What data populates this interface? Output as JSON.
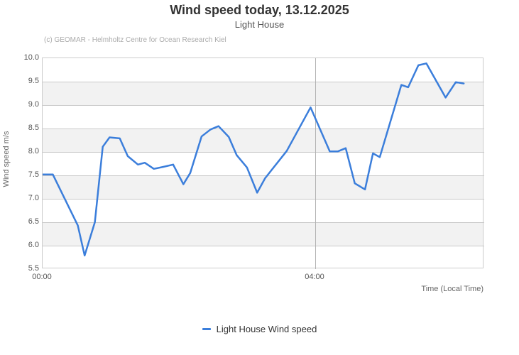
{
  "header": {
    "title": "Wind speed today, 13.12.2025",
    "subtitle": "Light House",
    "credit": "(c) GEOMAR - Helmholtz Centre for Ocean Research Kiel"
  },
  "legend": {
    "label": "Light House Wind speed"
  },
  "colors": {
    "line": "#3b7edb",
    "band": "#f2f2f2",
    "gridline": "#c9c9c9",
    "vertical_gridline": "#b3b3b3",
    "plot_border": "#cccccc"
  },
  "chart_data": {
    "type": "line",
    "title": "Wind speed today, 13.12.2025",
    "subtitle": "Light House",
    "xlabel": "Time (Local Time)",
    "ylabel": "Wind speed m/s",
    "ylim": [
      5.5,
      10.0
    ],
    "ytick_step": 0.5,
    "ytick_labels": [
      "10.0",
      "9.5",
      "9.0",
      "8.5",
      "8.0",
      "7.5",
      "7.0",
      "6.5",
      "6.0",
      "5.5"
    ],
    "xlim_minutes": [
      0,
      389
    ],
    "xticks": [
      {
        "minute": 0,
        "label": "00:00"
      },
      {
        "minute": 240,
        "label": "04:00"
      }
    ],
    "grid": true,
    "alternating_bands": true,
    "legend_position": "bottom",
    "series": [
      {
        "name": "Light House Wind speed",
        "color": "#3b7edb",
        "points": [
          {
            "time": "00:00",
            "value": 7.52
          },
          {
            "time": "00:09",
            "value": 7.52
          },
          {
            "time": "00:31",
            "value": 6.43
          },
          {
            "time": "00:37",
            "value": 5.79
          },
          {
            "time": "00:46",
            "value": 6.5
          },
          {
            "time": "00:53",
            "value": 8.11
          },
          {
            "time": "00:59",
            "value": 8.31
          },
          {
            "time": "01:08",
            "value": 8.29
          },
          {
            "time": "01:15",
            "value": 7.91
          },
          {
            "time": "01:24",
            "value": 7.73
          },
          {
            "time": "01:30",
            "value": 7.77
          },
          {
            "time": "01:38",
            "value": 7.64
          },
          {
            "time": "01:46",
            "value": 7.68
          },
          {
            "time": "01:55",
            "value": 7.73
          },
          {
            "time": "02:04",
            "value": 7.31
          },
          {
            "time": "02:10",
            "value": 7.55
          },
          {
            "time": "02:20",
            "value": 8.33
          },
          {
            "time": "02:28",
            "value": 8.48
          },
          {
            "time": "02:35",
            "value": 8.55
          },
          {
            "time": "02:44",
            "value": 8.32
          },
          {
            "time": "02:51",
            "value": 7.93
          },
          {
            "time": "03:00",
            "value": 7.67
          },
          {
            "time": "03:09",
            "value": 7.13
          },
          {
            "time": "03:16",
            "value": 7.44
          },
          {
            "time": "03:35",
            "value": 8.02
          },
          {
            "time": "03:56",
            "value": 8.95
          },
          {
            "time": "04:13",
            "value": 8.01
          },
          {
            "time": "04:20",
            "value": 8.01
          },
          {
            "time": "04:27",
            "value": 8.08
          },
          {
            "time": "04:35",
            "value": 7.33
          },
          {
            "time": "04:44",
            "value": 7.2
          },
          {
            "time": "04:51",
            "value": 7.97
          },
          {
            "time": "04:57",
            "value": 7.89
          },
          {
            "time": "05:06",
            "value": 8.62
          },
          {
            "time": "05:16",
            "value": 9.43
          },
          {
            "time": "05:22",
            "value": 9.38
          },
          {
            "time": "05:31",
            "value": 9.85
          },
          {
            "time": "05:38",
            "value": 9.89
          },
          {
            "time": "05:55",
            "value": 9.16
          },
          {
            "time": "06:04",
            "value": 9.49
          },
          {
            "time": "06:11",
            "value": 9.46
          }
        ]
      }
    ]
  }
}
